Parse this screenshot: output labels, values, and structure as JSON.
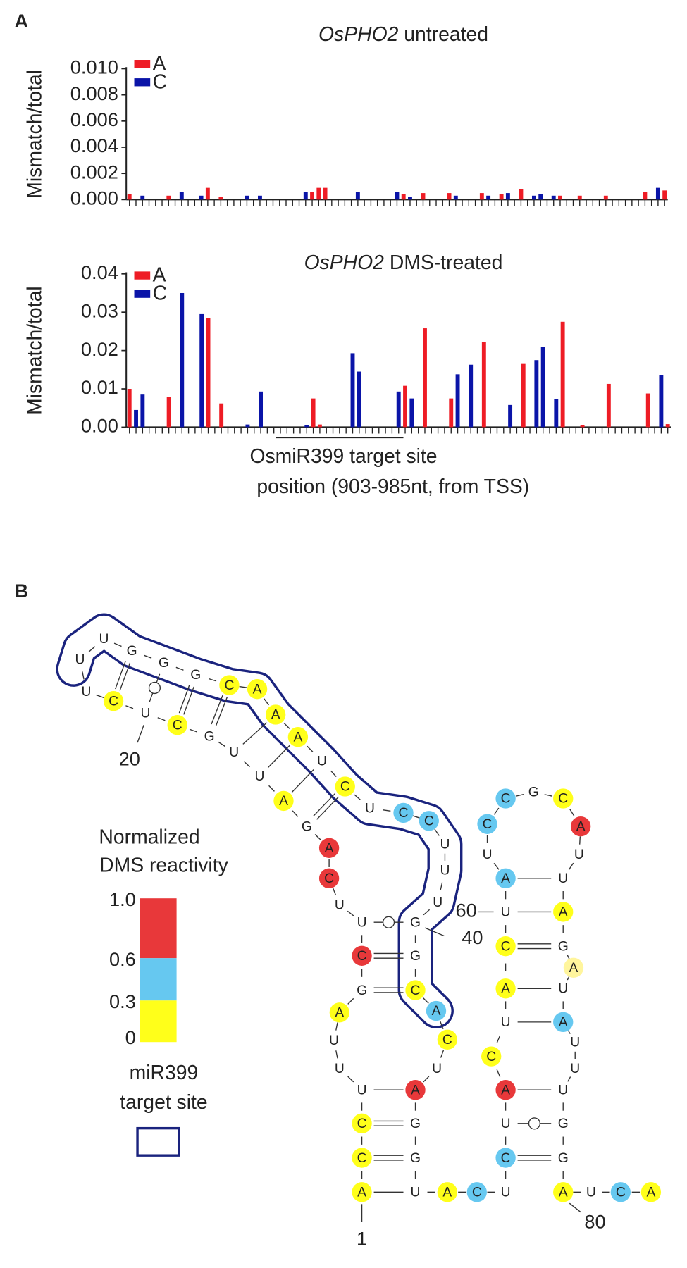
{
  "panel_a": "A",
  "panel_b": "B",
  "chart_data": [
    {
      "type": "bar",
      "gene": "OsPHO2",
      "title": "untreated",
      "ylabel": "Mismatch/total",
      "ylim": [
        0,
        0.01
      ],
      "yticks": [
        {
          "value": 0,
          "label": "0.000"
        },
        0.002,
        0.004,
        0.006,
        0.008,
        {
          "value": 0.01,
          "label": "0.010"
        }
      ],
      "categories": [
        null,
        null,
        null,
        null,
        null,
        null,
        null,
        null,
        null,
        null,
        null,
        null,
        null,
        null,
        null,
        null,
        null,
        null,
        null,
        null,
        null,
        null,
        null,
        null,
        null,
        null,
        null,
        null,
        null,
        null,
        null,
        null,
        null,
        null,
        null,
        null,
        null,
        null,
        null,
        null,
        null,
        null,
        null,
        null,
        null,
        null,
        null,
        null,
        null,
        null,
        null,
        null,
        null,
        null,
        null,
        null,
        null,
        null,
        null,
        null,
        null,
        null,
        null,
        null,
        null,
        null,
        null,
        null,
        null,
        null,
        null,
        null,
        null,
        null,
        null,
        null,
        null,
        null,
        null,
        null,
        null,
        null,
        null
      ],
      "series": [
        {
          "name": "A",
          "color": "#ee1c25",
          "values": [
            0.0004,
            null,
            null,
            null,
            null,
            null,
            0.0003,
            null,
            null,
            null,
            null,
            null,
            0.0009,
            null,
            0.0002,
            null,
            null,
            null,
            null,
            null,
            null,
            null,
            null,
            null,
            null,
            null,
            null,
            null,
            0.0006,
            0.0009,
            0.0009,
            null,
            null,
            null,
            null,
            null,
            null,
            null,
            null,
            null,
            null,
            null,
            0.0004,
            null,
            null,
            0.0005,
            null,
            null,
            null,
            0.0005,
            null,
            null,
            null,
            null,
            0.0005,
            null,
            null,
            0.0004,
            null,
            null,
            0.0008,
            null,
            null,
            null,
            null,
            null,
            0.0003,
            null,
            null,
            0.0003,
            null,
            null,
            null,
            0.0003,
            null,
            null,
            null,
            null,
            null,
            0.0006,
            null,
            null,
            0.0007
          ]
        },
        {
          "name": "C",
          "color": "#0a14a8",
          "values": [
            null,
            null,
            0.0003,
            null,
            null,
            null,
            null,
            null,
            0.0006,
            null,
            null,
            0.0003,
            null,
            null,
            null,
            null,
            null,
            null,
            0.0003,
            null,
            0.0003,
            null,
            null,
            null,
            null,
            null,
            null,
            0.0006,
            null,
            null,
            null,
            null,
            null,
            null,
            null,
            0.0006,
            null,
            null,
            null,
            null,
            null,
            0.0006,
            null,
            0.0002,
            null,
            null,
            null,
            null,
            null,
            null,
            0.0003,
            null,
            null,
            null,
            null,
            0.0003,
            null,
            null,
            0.0005,
            null,
            null,
            null,
            0.0003,
            0.0004,
            null,
            0.0003,
            null,
            null,
            null,
            null,
            null,
            null,
            null,
            null,
            null,
            null,
            null,
            null,
            null,
            null,
            null,
            0.0009,
            null
          ]
        }
      ]
    },
    {
      "type": "bar",
      "gene": "OsPHO2",
      "title": "DMS-treated",
      "ylabel": "Mismatch/total",
      "xlabel": "position (903-985nt, from TSS)",
      "annotation": "OsmiR399 target site",
      "ylim": [
        0,
        0.04
      ],
      "yticks": [
        {
          "value": 0,
          "label": "0.00"
        },
        0.01,
        0.02,
        0.03,
        0.04
      ],
      "categories": [
        null,
        null,
        null,
        null,
        null,
        null,
        null,
        null,
        null,
        null,
        null,
        null,
        null,
        null,
        null,
        null,
        null,
        null,
        null,
        null,
        null,
        null,
        null,
        null,
        null,
        null,
        null,
        null,
        null,
        null,
        null,
        null,
        null,
        null,
        null,
        null,
        null,
        null,
        null,
        null,
        null,
        null,
        null,
        null,
        null,
        null,
        null,
        null,
        null,
        null,
        null,
        null,
        null,
        null,
        null,
        null,
        null,
        null,
        null,
        null,
        null,
        null,
        null,
        null,
        null,
        null,
        null,
        null,
        null,
        null,
        null,
        null,
        null,
        null,
        null,
        null,
        null,
        null,
        null,
        null,
        null,
        null,
        null
      ],
      "series": [
        {
          "name": "A",
          "color": "#ee1c25",
          "values": [
            0.01,
            null,
            null,
            null,
            null,
            null,
            0.0078,
            null,
            null,
            null,
            null,
            null,
            0.0285,
            null,
            0.0062,
            null,
            null,
            null,
            null,
            null,
            null,
            null,
            null,
            null,
            null,
            null,
            null,
            null,
            0.0075,
            0.0007,
            null,
            null,
            null,
            null,
            null,
            null,
            null,
            null,
            null,
            null,
            null,
            null,
            0.0108,
            null,
            null,
            0.0258,
            null,
            null,
            null,
            0.0075,
            null,
            null,
            null,
            null,
            0.0223,
            null,
            null,
            null,
            null,
            null,
            0.0165,
            null,
            null,
            null,
            null,
            null,
            0.0275,
            null,
            null,
            0.0005,
            null,
            null,
            null,
            0.0113,
            null,
            null,
            null,
            null,
            null,
            0.0088,
            null,
            null,
            0.0008
          ]
        },
        {
          "name": "C",
          "color": "#0a14a8",
          "values": [
            null,
            0.0045,
            0.0085,
            null,
            null,
            null,
            null,
            null,
            0.035,
            null,
            null,
            0.0295,
            null,
            null,
            null,
            null,
            null,
            null,
            0.0007,
            null,
            0.0093,
            null,
            null,
            null,
            null,
            null,
            null,
            0.0006,
            null,
            null,
            null,
            null,
            null,
            null,
            0.0193,
            0.0145,
            null,
            null,
            null,
            null,
            null,
            0.0093,
            null,
            0.0075,
            null,
            null,
            null,
            null,
            null,
            null,
            0.0138,
            null,
            0.0163,
            null,
            null,
            null,
            null,
            null,
            0.0058,
            null,
            null,
            null,
            0.0175,
            0.021,
            null,
            0.0073,
            null,
            null,
            null,
            null,
            null,
            null,
            null,
            null,
            null,
            null,
            null,
            null,
            null,
            null,
            null,
            0.0135,
            null
          ]
        }
      ]
    }
  ],
  "diagram": {
    "legend": {
      "title": [
        "Normalized",
        "DMS reactivity"
      ],
      "ticks": [
        "1.0",
        "0.6",
        "0.3",
        "0"
      ],
      "colors": [
        "#e8383a",
        "#66c8f0",
        "#ffff1a"
      ],
      "target": [
        "miR399",
        "target site"
      ],
      "target_color": "#1a237e"
    },
    "nodes": [
      {
        "label": "A",
        "color": "#ffff1a",
        "number": "1"
      },
      {
        "label": "C",
        "color": "#ffff1a"
      },
      {
        "label": "C",
        "color": "#ffff1a"
      },
      {
        "label": "U"
      },
      {
        "label": "U"
      },
      {
        "label": "U"
      },
      {
        "label": "A",
        "color": "#ffff1a"
      },
      {
        "label": "G"
      },
      {
        "label": "C",
        "color": "#e8383a"
      },
      {
        "label": "U"
      },
      {
        "label": "U"
      },
      {
        "label": "C",
        "color": "#e8383a"
      },
      {
        "label": "A",
        "color": "#e8383a"
      },
      {
        "label": "G"
      },
      {
        "label": "A",
        "color": "#ffff1a"
      },
      {
        "label": "U"
      },
      {
        "label": "U"
      },
      {
        "label": "G"
      },
      {
        "label": "C",
        "color": "#ffff1a"
      },
      {
        "label": "U",
        "number": "20"
      },
      {
        "label": "C",
        "color": "#ffff1a"
      },
      {
        "label": "U"
      },
      {
        "label": "U"
      },
      {
        "label": "U"
      },
      {
        "label": "G"
      },
      {
        "label": "G"
      },
      {
        "label": "G"
      },
      {
        "label": "C",
        "color": "#ffff1a"
      },
      {
        "label": "A",
        "color": "#ffff1a"
      },
      {
        "label": "A",
        "color": "#ffff1a"
      },
      {
        "label": "A",
        "color": "#ffff1a"
      },
      {
        "label": "U"
      },
      {
        "label": "C",
        "color": "#ffff1a"
      },
      {
        "label": "U"
      },
      {
        "label": "C",
        "color": "#66c8f0"
      },
      {
        "label": "C",
        "color": "#66c8f0"
      },
      {
        "label": "U"
      },
      {
        "label": "U"
      },
      {
        "label": "U"
      },
      {
        "label": "G",
        "number": "40"
      },
      {
        "label": "G"
      },
      {
        "label": "C",
        "color": "#ffff1a"
      },
      {
        "label": "A",
        "color": "#66c8f0"
      },
      {
        "label": "C",
        "color": "#ffff1a"
      },
      {
        "label": "U"
      },
      {
        "label": "A",
        "color": "#e8383a"
      },
      {
        "label": "G"
      },
      {
        "label": "G"
      },
      {
        "label": "U"
      },
      {
        "label": "A",
        "color": "#ffff1a"
      },
      {
        "label": "C",
        "color": "#66c8f0"
      },
      {
        "label": "U"
      },
      {
        "label": "C",
        "color": "#66c8f0"
      },
      {
        "label": "U"
      },
      {
        "label": "A",
        "color": "#e8383a"
      },
      {
        "label": "C",
        "color": "#ffff1a"
      },
      {
        "label": "U"
      },
      {
        "label": "A",
        "color": "#ffff1a"
      },
      {
        "label": "C",
        "color": "#ffff1a"
      },
      {
        "label": "U",
        "number": "60"
      },
      {
        "label": "A",
        "color": "#66c8f0"
      },
      {
        "label": "U"
      },
      {
        "label": "C",
        "color": "#66c8f0"
      },
      {
        "label": "C",
        "color": "#66c8f0"
      },
      {
        "label": "G"
      },
      {
        "label": "C",
        "color": "#ffff1a"
      },
      {
        "label": "A",
        "color": "#e8383a"
      },
      {
        "label": "U"
      },
      {
        "label": "U"
      },
      {
        "label": "A",
        "color": "#ffff1a"
      },
      {
        "label": "G"
      },
      {
        "label": "A",
        "color": "#fff59d"
      },
      {
        "label": "U"
      },
      {
        "label": "A",
        "color": "#66c8f0"
      },
      {
        "label": "U"
      },
      {
        "label": "U"
      },
      {
        "label": "U"
      },
      {
        "label": "G"
      },
      {
        "label": "G"
      },
      {
        "label": "A",
        "color": "#ffff1a",
        "number": "80"
      },
      {
        "label": "U"
      },
      {
        "label": "C",
        "color": "#66c8f0"
      },
      {
        "label": "A",
        "color": "#ffff1a"
      }
    ]
  }
}
